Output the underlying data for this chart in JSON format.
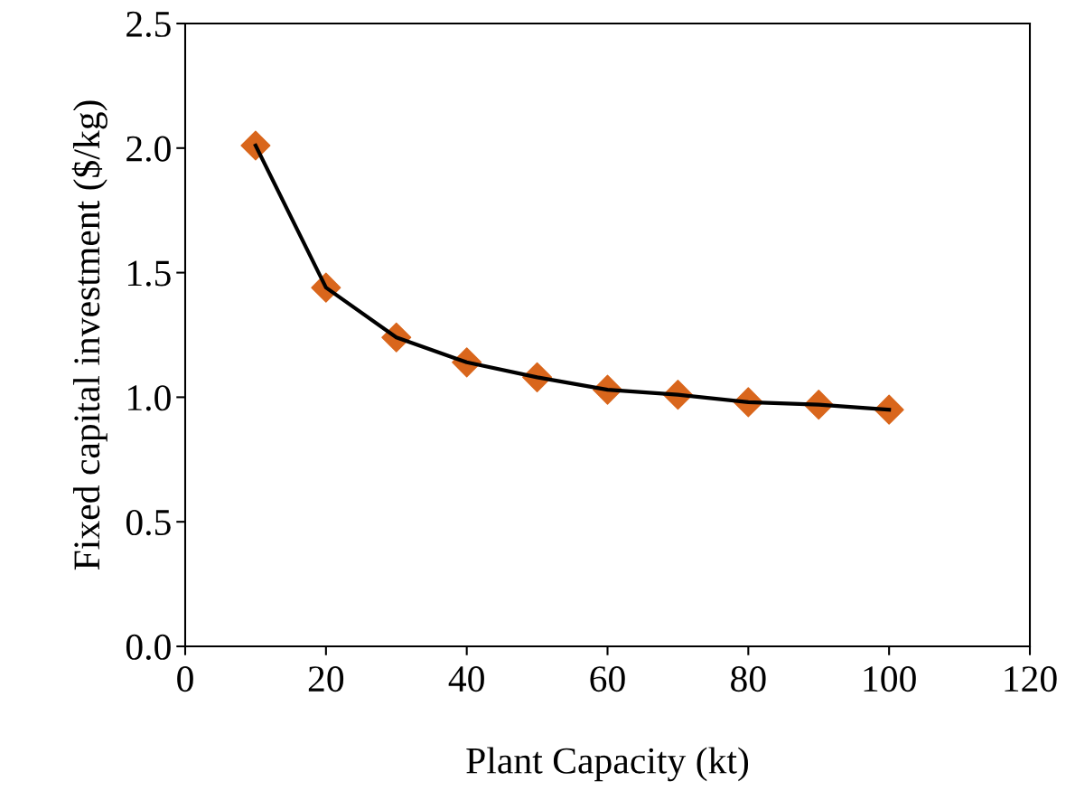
{
  "chart_data": {
    "type": "line",
    "xlabel": "Plant Capacity (kt)",
    "ylabel": "Fixed capital investment ($/kg)",
    "x": [
      10,
      20,
      30,
      40,
      50,
      60,
      70,
      80,
      90,
      100
    ],
    "series": [
      {
        "type": "scatter",
        "color": "#d9661c",
        "marker": "diamond",
        "values": [
          2.01,
          1.44,
          1.24,
          1.14,
          1.08,
          1.03,
          1.01,
          0.98,
          0.97,
          0.95
        ]
      },
      {
        "color": "#000000",
        "marker": "none",
        "line_style": "solid",
        "values": [
          2.01,
          1.44,
          1.24,
          1.14,
          1.08,
          1.03,
          1.01,
          0.98,
          0.97,
          0.95
        ]
      }
    ],
    "xlim": [
      0,
      120
    ],
    "xticks": [
      0,
      20,
      40,
      60,
      80,
      100,
      120
    ],
    "ylim": [
      0,
      2.5
    ],
    "yticks": [
      {
        "value": 0,
        "label": "0.0"
      },
      {
        "value": 0.5,
        "label": "0.5"
      },
      {
        "value": 1,
        "label": "1.0"
      },
      {
        "value": 1.5,
        "label": "1.5"
      },
      {
        "value": 2,
        "label": "2.0"
      },
      {
        "value": 2.5,
        "label": "2.5"
      }
    ],
    "grid": false,
    "legend": false
  }
}
